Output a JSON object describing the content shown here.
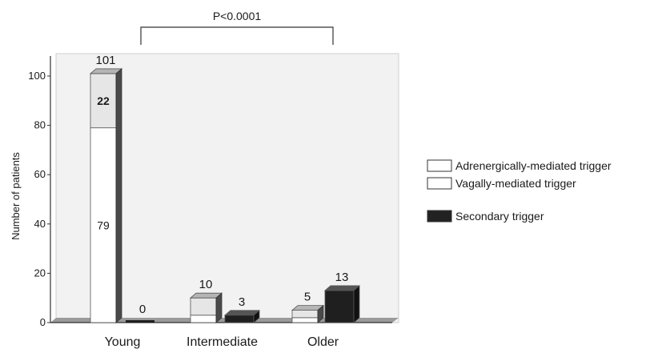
{
  "chart_data": {
    "type": "bar",
    "stacked": true,
    "style": "3d",
    "categories": [
      "Young",
      "Intermediate",
      "Older"
    ],
    "ylabel": "Number of patients",
    "xlabel": "",
    "ylim": [
      0,
      105
    ],
    "yticks": [
      "0",
      "20",
      "40",
      "60",
      "80",
      "100"
    ],
    "grid": false,
    "legend_position": "right",
    "legend": [
      {
        "name": "Adrenergically-mediated trigger",
        "color": "#ffffff"
      },
      {
        "name": "Vagally-mediated trigger",
        "color": "#ffffff"
      },
      {
        "name": "Secondary trigger",
        "color": "#222222"
      }
    ],
    "bars": [
      {
        "category": "Young",
        "kind": "primary",
        "segments": [
          79,
          22
        ],
        "segment_labels": [
          "79",
          "22"
        ],
        "total_label": "101"
      },
      {
        "category": "Young",
        "kind": "secondary",
        "value": 0,
        "total_label": "0"
      },
      {
        "category": "Intermediate",
        "kind": "primary",
        "segments": [
          3,
          7
        ],
        "segment_labels": [
          "",
          ""
        ],
        "total_label": "10"
      },
      {
        "category": "Intermediate",
        "kind": "secondary",
        "value": 3,
        "total_label": "3"
      },
      {
        "category": "Older",
        "kind": "primary",
        "segments": [
          2,
          3
        ],
        "segment_labels": [
          "",
          ""
        ],
        "total_label": "5"
      },
      {
        "category": "Older",
        "kind": "secondary",
        "value": 13,
        "total_label": "13"
      }
    ],
    "annotation": {
      "text": "P<0.0001",
      "from": "Young",
      "to": "Older"
    }
  }
}
